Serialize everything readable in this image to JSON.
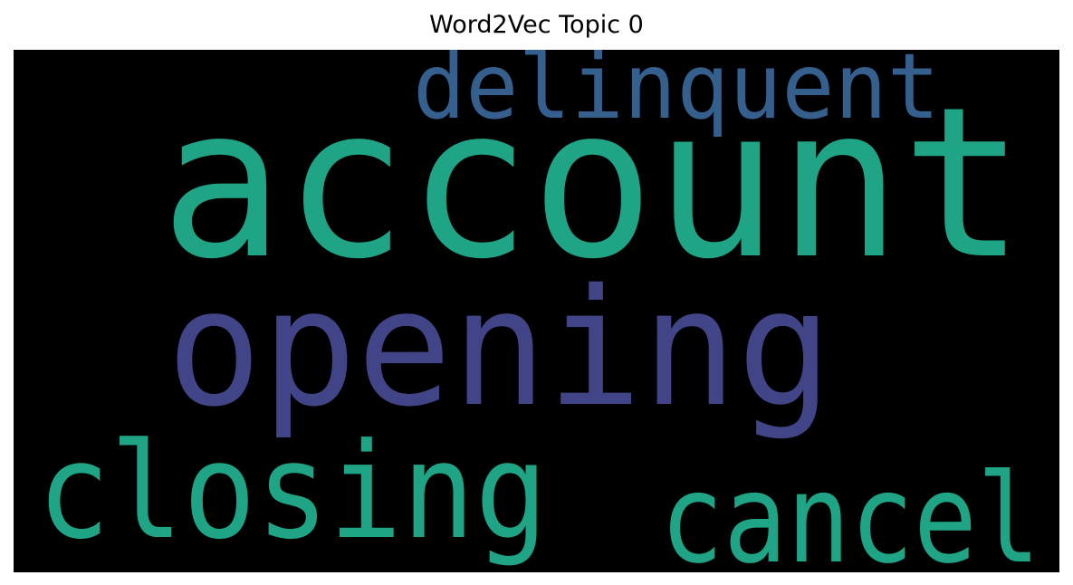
{
  "title": "Word2Vec Topic 0",
  "colors": {
    "background": "#000000",
    "teal": "#20A486",
    "indigo": "#414487",
    "blue": "#355F8D"
  },
  "words": {
    "account": {
      "text": "account",
      "color": "#20A486"
    },
    "opening": {
      "text": "opening",
      "color": "#414487"
    },
    "delinquent": {
      "text": "delinquent",
      "color": "#355F8D"
    },
    "closing": {
      "text": "closing",
      "color": "#20A486"
    },
    "cancel": {
      "text": "cancel",
      "color": "#20A486"
    }
  }
}
